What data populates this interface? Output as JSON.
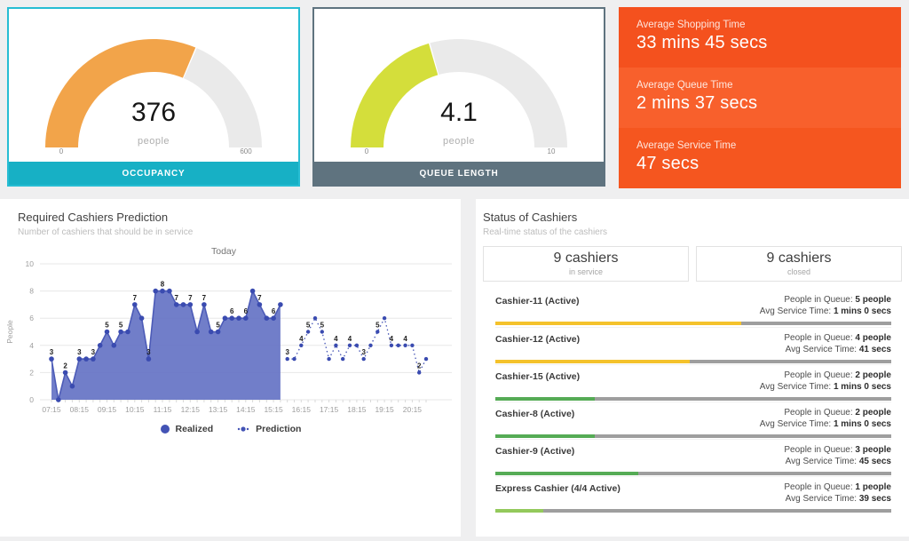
{
  "window": {
    "bg": "#efeff0"
  },
  "gauges": [
    {
      "title": "OCCUPANCY",
      "value": 376,
      "max": 600,
      "display": "376",
      "unit": "people",
      "min_label": "0",
      "max_label": "600",
      "arc_color": "#F2A44A",
      "track_color": "#EAEAEA",
      "banner_color": "#17B0C5",
      "border_color": "#27BDD3"
    },
    {
      "title": "QUEUE LENGTH",
      "value": 4.1,
      "max": 10,
      "display": "4.1",
      "unit": "people",
      "min_label": "0",
      "max_label": "10",
      "arc_color": "#D4DE3B",
      "track_color": "#EAEAEA",
      "banner_color": "#5F737F",
      "border_color": "#5F737F"
    }
  ],
  "kpis": [
    {
      "label": "Average Shopping Time",
      "value": "33 mins 45 secs",
      "bg": "#F4511E"
    },
    {
      "label": "Average Queue Time",
      "value": "2 mins 37 secs",
      "bg": "#F8602C"
    },
    {
      "label": "Average Service Time",
      "value": "47 secs",
      "bg": "#F5561F"
    }
  ],
  "prediction_panel": {
    "title": "Required Cashiers Prediction",
    "subtitle": "Number of cashiers that should be in service",
    "legend": [
      {
        "label": "Realized"
      },
      {
        "label": "Prediction"
      }
    ]
  },
  "chart_data": {
    "type": "area",
    "title": "Today",
    "ylabel": "People",
    "ylim": [
      0,
      10
    ],
    "yticks": [
      0,
      2,
      4,
      6,
      8,
      10
    ],
    "x_interval_mins": 15,
    "x_tick_labels": [
      "07:15",
      "08:15",
      "09:15",
      "10:15",
      "11:15",
      "12:15",
      "13:15",
      "14:15",
      "15:15",
      "16:15",
      "17:15",
      "18:15",
      "19:15",
      "20:15"
    ],
    "series": [
      {
        "name": "Realized",
        "style": "area",
        "fill_color": "#6573C4",
        "line_color": "#4C5BB7",
        "point_color": "#3A4BB0",
        "label_every": 2,
        "times": [
          "07:15",
          "07:30",
          "07:45",
          "08:00",
          "08:15",
          "08:30",
          "08:45",
          "09:00",
          "09:15",
          "09:30",
          "09:45",
          "10:00",
          "10:15",
          "10:30",
          "10:45",
          "11:00",
          "11:15",
          "11:30",
          "11:45",
          "12:00",
          "12:15",
          "12:30",
          "12:45",
          "13:00",
          "13:15",
          "13:30",
          "13:45",
          "14:00",
          "14:15",
          "14:30",
          "14:45",
          "15:00",
          "15:15",
          "15:30"
        ],
        "values": [
          3,
          0,
          2,
          1,
          3,
          3,
          3,
          4,
          5,
          4,
          5,
          5,
          7,
          6,
          3,
          8,
          8,
          8,
          7,
          7,
          7,
          5,
          7,
          5,
          5,
          6,
          6,
          6,
          6,
          8,
          7,
          6,
          6,
          7
        ]
      },
      {
        "name": "Prediction",
        "style": "dotted",
        "line_color": "#4655B5",
        "point_color": "#3A4BB0",
        "times": [
          "15:45",
          "16:00",
          "16:15",
          "16:30",
          "16:45",
          "17:00",
          "17:15",
          "17:30",
          "17:45",
          "18:00",
          "18:15",
          "18:30",
          "18:45",
          "19:00",
          "19:15",
          "19:30",
          "19:45",
          "20:00",
          "20:15",
          "20:30",
          "20:45"
        ],
        "values": [
          3,
          3,
          4,
          5,
          6,
          5,
          3,
          4,
          3,
          4,
          4,
          3,
          4,
          5,
          6,
          4,
          4,
          4,
          4,
          2,
          3
        ],
        "label_flags": [
          1,
          0,
          1,
          1,
          0,
          1,
          0,
          1,
          0,
          1,
          0,
          1,
          0,
          1,
          0,
          1,
          0,
          1,
          0,
          1,
          0
        ]
      }
    ]
  },
  "status_panel": {
    "title": "Status of Cashiers",
    "subtitle": "Real-time status of the cashiers",
    "summary": [
      {
        "value": "9 cashiers",
        "label": "in service"
      },
      {
        "value": "9 cashiers",
        "label": "closed"
      }
    ],
    "queue_label": "People in Queue:",
    "service_label": "Avg Service Time:",
    "track_color": "#9E9E9E",
    "cashiers": [
      {
        "name": "Cashier-11 (Active)",
        "queue": "5 people",
        "service": "1 mins 0 secs",
        "bar_pct": 62,
        "bar_color": "#F4C22C"
      },
      {
        "name": "Cashier-12 (Active)",
        "queue": "4 people",
        "service": "41 secs",
        "bar_pct": 49,
        "bar_color": "#F4C22C"
      },
      {
        "name": "Cashier-15 (Active)",
        "queue": "2 people",
        "service": "1 mins 0 secs",
        "bar_pct": 25,
        "bar_color": "#55AB55"
      },
      {
        "name": "Cashier-8 (Active)",
        "queue": "2 people",
        "service": "1 mins 0 secs",
        "bar_pct": 25,
        "bar_color": "#55AB55"
      },
      {
        "name": "Cashier-9 (Active)",
        "queue": "3 people",
        "service": "45 secs",
        "bar_pct": 36,
        "bar_color": "#55AB55"
      },
      {
        "name": "Express Cashier (4/4 Active)",
        "queue": "1 people",
        "service": "39 secs",
        "bar_pct": 12,
        "bar_color": "#93C95B"
      }
    ]
  }
}
